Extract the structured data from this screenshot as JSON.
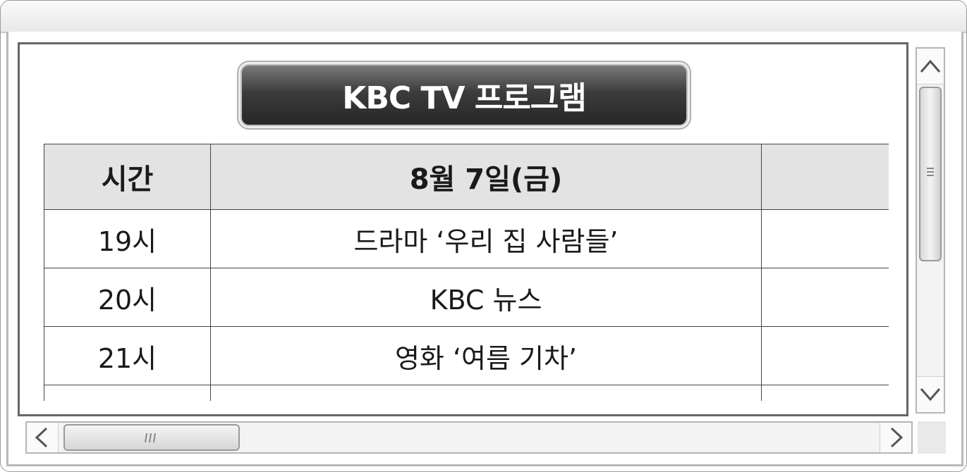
{
  "banner": {
    "title": "KBC TV 프로그램"
  },
  "table": {
    "headers": {
      "time": "시간",
      "day": "8월 7일(금)",
      "next": ""
    },
    "rows": [
      {
        "time": "19시",
        "program": "드라마 ‘우리 집 사람들’",
        "next": ""
      },
      {
        "time": "20시",
        "program": "KBC 뉴스",
        "next": ""
      },
      {
        "time": "21시",
        "program": "영화 ‘여름 기차’",
        "next": ""
      }
    ]
  },
  "icons": {
    "scroll_up": "chevron-up-icon",
    "scroll_down": "chevron-down-icon",
    "scroll_left": "chevron-left-icon",
    "scroll_right": "chevron-right-icon",
    "grip": "grip-lines-icon"
  },
  "colors": {
    "banner_bg": "#2e2e2e",
    "header_bg": "#e3e3e3",
    "border": "#444444"
  }
}
